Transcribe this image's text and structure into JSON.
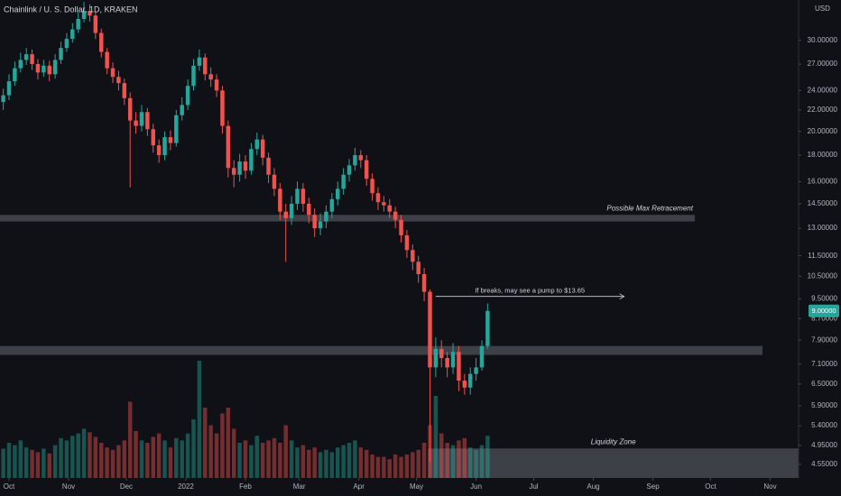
{
  "chart_data": {
    "type": "candlestick",
    "title": "Chainlink / U. S. Dollar, 1D, KRAKEN",
    "currency": "USD",
    "last_price_label": "9.00000",
    "log_scale": true,
    "grid": false,
    "up_color": "#26a69a",
    "down_color": "#ef5350",
    "xlim": [
      -4.7,
      410.8
    ],
    "xticks": [
      {
        "value": 0,
        "label": "Oct"
      },
      {
        "value": 31,
        "label": "Nov"
      },
      {
        "value": 61,
        "label": "Dec"
      },
      {
        "value": 92,
        "label": "2022"
      },
      {
        "value": 123,
        "label": "Feb"
      },
      {
        "value": 151,
        "label": "Mar"
      },
      {
        "value": 182,
        "label": "Apr"
      },
      {
        "value": 212,
        "label": "May"
      },
      {
        "value": 243,
        "label": "Jun"
      },
      {
        "value": 273,
        "label": "Jul"
      },
      {
        "value": 304,
        "label": "Aug"
      },
      {
        "value": 335,
        "label": "Sep"
      },
      {
        "value": 365,
        "label": "Oct"
      },
      {
        "value": 396,
        "label": "Nov"
      }
    ],
    "ylim": [
      4.28,
      35.9
    ],
    "yticks": [
      {
        "value": 30,
        "label": "30.00000"
      },
      {
        "value": 27,
        "label": "27.00000"
      },
      {
        "value": 24,
        "label": "24.00000"
      },
      {
        "value": 22,
        "label": "22.00000"
      },
      {
        "value": 20,
        "label": "20.00000"
      },
      {
        "value": 18,
        "label": "18.00000"
      },
      {
        "value": 16,
        "label": "16.00000"
      },
      {
        "value": 14.5,
        "label": "14.50000"
      },
      {
        "value": 13,
        "label": "13.00000"
      },
      {
        "value": 11.5,
        "label": "11.50000"
      },
      {
        "value": 10.5,
        "label": "10.50000"
      },
      {
        "value": 9.5,
        "label": "9.50000"
      },
      {
        "value": 8.7,
        "label": "8.70000"
      },
      {
        "value": 7.9,
        "label": "7.90000"
      },
      {
        "value": 7.1,
        "label": "7.10000"
      },
      {
        "value": 6.5,
        "label": "6.50000"
      },
      {
        "value": 5.9,
        "label": "5.90000"
      },
      {
        "value": 5.4,
        "label": "5.40000"
      },
      {
        "value": 4.95,
        "label": "4.95000"
      },
      {
        "value": 4.55,
        "label": "4.55000"
      }
    ],
    "x": [
      -3,
      0,
      3,
      6,
      9,
      12,
      15,
      18,
      21,
      24,
      27,
      30,
      33,
      36,
      39,
      42,
      45,
      48,
      51,
      54,
      57,
      60,
      63,
      66,
      69,
      72,
      75,
      78,
      81,
      84,
      87,
      90,
      93,
      96,
      99,
      102,
      105,
      108,
      111,
      114,
      117,
      120,
      123,
      126,
      129,
      132,
      135,
      138,
      141,
      144,
      147,
      150,
      153,
      156,
      159,
      162,
      165,
      168,
      171,
      174,
      177,
      180,
      183,
      186,
      189,
      192,
      195,
      198,
      201,
      204,
      207,
      210,
      213,
      216,
      219,
      222,
      225,
      228,
      231,
      234,
      237,
      240,
      243,
      246,
      249
    ],
    "open": [
      22.8,
      23.5,
      25.0,
      26.5,
      27.5,
      28.2,
      27.0,
      26.0,
      26.8,
      25.8,
      27.5,
      29.0,
      30.2,
      31.5,
      33.0,
      34.2,
      33.5,
      31.0,
      28.5,
      26.5,
      25.5,
      24.8,
      23.2,
      21.0,
      20.5,
      21.8,
      20.2,
      18.8,
      18.0,
      19.5,
      19.0,
      21.5,
      22.5,
      24.5,
      26.8,
      27.8,
      25.8,
      25.2,
      24.0,
      20.5,
      17.0,
      16.5,
      17.5,
      16.8,
      18.5,
      19.3,
      17.8,
      16.5,
      15.5,
      14.0,
      13.6,
      14.5,
      15.5,
      14.5,
      13.8,
      13.0,
      13.4,
      14.0,
      14.8,
      15.5,
      16.5,
      17.2,
      18.0,
      17.6,
      16.2,
      15.2,
      14.6,
      14.4,
      14.0,
      13.5,
      12.6,
      11.8,
      11.2,
      10.6,
      9.8,
      7.0,
      7.6,
      7.3,
      7.0,
      7.5,
      6.6,
      6.4,
      6.8,
      7.0,
      7.7
    ],
    "high": [
      24.2,
      25.8,
      27.3,
      28.4,
      29.0,
      28.8,
      27.6,
      27.5,
      27.4,
      28.2,
      29.8,
      31.0,
      32.4,
      34.0,
      35.6,
      35.2,
      34.0,
      31.6,
      29.0,
      27.2,
      26.2,
      25.3,
      23.8,
      21.8,
      22.5,
      22.2,
      20.7,
      19.3,
      20.0,
      20.1,
      22.0,
      23.3,
      25.2,
      27.6,
      28.8,
      28.3,
      26.6,
      25.8,
      24.5,
      21.0,
      17.6,
      18.1,
      18.0,
      19.0,
      19.9,
      19.7,
      18.2,
      17.0,
      15.9,
      14.5,
      15.0,
      16.0,
      15.9,
      14.9,
      14.2,
      13.9,
      14.4,
      15.2,
      16.0,
      17.0,
      17.7,
      18.6,
      18.4,
      18.0,
      16.6,
      15.6,
      15.0,
      14.8,
      14.3,
      13.8,
      12.9,
      12.1,
      11.5,
      10.9,
      9.9,
      8.0,
      7.9,
      7.5,
      7.8,
      7.7,
      6.8,
      7.0,
      7.3,
      7.9,
      9.3
    ],
    "low": [
      22.0,
      23.0,
      24.5,
      26.0,
      26.9,
      26.3,
      25.2,
      25.5,
      25.0,
      25.3,
      27.0,
      28.5,
      29.7,
      31.0,
      32.5,
      32.6,
      30.2,
      27.8,
      25.8,
      24.8,
      24.0,
      22.5,
      15.6,
      19.8,
      20.0,
      19.6,
      18.2,
      17.4,
      17.6,
      18.4,
      18.7,
      21.0,
      22.0,
      24.0,
      26.2,
      25.1,
      24.4,
      23.3,
      19.8,
      16.3,
      15.6,
      16.0,
      16.2,
      16.5,
      18.0,
      17.2,
      15.9,
      15.0,
      13.5,
      11.2,
      13.2,
      14.1,
      14.0,
      13.3,
      12.5,
      12.6,
      13.0,
      13.6,
      14.4,
      15.1,
      16.0,
      16.8,
      17.0,
      15.7,
      14.7,
      14.1,
      14.0,
      13.6,
      13.0,
      12.2,
      11.4,
      10.8,
      10.2,
      9.4,
      4.6,
      6.7,
      7.0,
      6.7,
      6.8,
      6.3,
      6.2,
      6.2,
      6.6,
      6.9,
      7.6
    ],
    "close": [
      23.5,
      25.0,
      26.5,
      27.5,
      28.2,
      27.0,
      26.0,
      26.8,
      25.8,
      27.5,
      29.0,
      30.2,
      31.5,
      33.0,
      34.2,
      33.5,
      31.0,
      28.5,
      26.5,
      25.5,
      24.8,
      23.2,
      21.0,
      20.5,
      21.8,
      20.2,
      18.8,
      18.0,
      19.5,
      19.0,
      21.5,
      22.5,
      24.5,
      26.8,
      27.8,
      25.8,
      25.2,
      24.0,
      20.5,
      17.0,
      16.5,
      17.5,
      16.8,
      18.5,
      19.3,
      17.8,
      16.5,
      15.5,
      14.0,
      13.6,
      14.5,
      15.5,
      14.5,
      13.8,
      13.0,
      13.4,
      14.0,
      14.8,
      15.5,
      16.5,
      17.2,
      18.0,
      17.6,
      16.2,
      15.2,
      14.6,
      14.4,
      14.0,
      13.5,
      12.6,
      11.8,
      11.2,
      10.6,
      9.8,
      7.0,
      7.6,
      7.3,
      7.0,
      7.5,
      6.6,
      6.4,
      6.8,
      7.0,
      7.7,
      9.0
    ],
    "volume": [
      2.5,
      3,
      2.8,
      3.2,
      2.6,
      2.4,
      2.2,
      2.5,
      2.1,
      2.8,
      3.4,
      3.2,
      3.6,
      3.8,
      4.2,
      3.9,
      3.5,
      3,
      2.6,
      2.4,
      2.8,
      3.2,
      6.5,
      4,
      3.2,
      3,
      3.5,
      3.8,
      3.2,
      2.6,
      3.4,
      3.2,
      3.8,
      5,
      10,
      6,
      4.5,
      3.8,
      5.5,
      6,
      4.2,
      3,
      3.2,
      2.8,
      3.6,
      3,
      3.2,
      3.4,
      3,
      4.5,
      3.2,
      2.6,
      2.8,
      2.4,
      2.6,
      2.2,
      2.4,
      2.2,
      2.6,
      2.8,
      3,
      3.2,
      2.6,
      2.4,
      2,
      1.8,
      1.8,
      1.6,
      2,
      1.8,
      2,
      2.2,
      2.4,
      3,
      4.5,
      7,
      3.8,
      3,
      2.8,
      3.2,
      3.4,
      2.6,
      2.4,
      2.8,
      3.6
    ],
    "zones": [
      {
        "label": "Possible Max Retracement",
        "low": 13.4,
        "high": 13.8,
        "x_start": -4.7,
        "x_end": 356.8
      },
      {
        "low": 7.4,
        "high": 7.7,
        "x_start": -4.7,
        "x_end": 392
      },
      {
        "label": "Liquidity Zone",
        "low": 4.28,
        "high": 4.88,
        "x_start": 218,
        "x_end": 410.8
      }
    ],
    "arrow": {
      "label": "If breaks, may see a pump to $13.65",
      "price": 9.6,
      "x_start": 222,
      "x_end": 320
    }
  }
}
